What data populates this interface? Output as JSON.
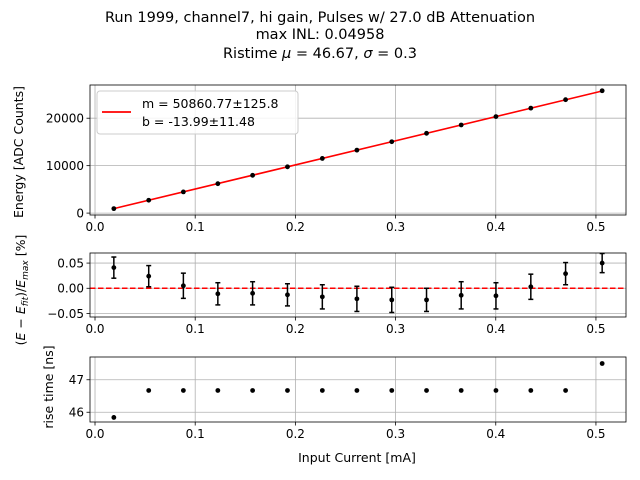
{
  "title_lines": [
    "Run 1999, channel7, hi gain, Pulses w/ 27.0 dB Attenuation",
    "max INL: 0.04958",
    "Ristime μ = 46.67, σ = 0.3"
  ],
  "chart_data": [
    {
      "type": "scatter",
      "name": "energy-vs-current",
      "ylabel": "Energy [ADC Counts]",
      "xlim": [
        -0.005,
        0.53
      ],
      "ylim": [
        -400,
        27000
      ],
      "xticks": [
        0.0,
        0.1,
        0.2,
        0.3,
        0.4,
        0.5
      ],
      "xtick_labels": [
        "0.0",
        "0.1",
        "0.2",
        "0.3",
        "0.4",
        "0.5"
      ],
      "yticks": [
        0,
        10000,
        20000
      ],
      "ytick_labels": [
        "0",
        "10000",
        "20000"
      ],
      "grid": true,
      "x": [
        0.0188,
        0.0536,
        0.0882,
        0.1226,
        0.1573,
        0.1921,
        0.2269,
        0.2614,
        0.2962,
        0.3309,
        0.3655,
        0.4002,
        0.435,
        0.4697,
        0.5062
      ],
      "y": [
        942,
        2713,
        4469,
        6197,
        7964,
        9755,
        11522,
        13273,
        15041,
        16813,
        18575,
        20341,
        22125,
        23904,
        25790
      ],
      "fit": {
        "m": 50860.77,
        "b": -13.99,
        "x_range": [
          0.0188,
          0.5062
        ]
      },
      "legend": [
        "m = 50860.77±125.8",
        "b = -13.99±11.48"
      ],
      "legend_position": "top-left",
      "fit_color": "#ff0000"
    },
    {
      "type": "scatter",
      "name": "inl-residuals",
      "ylabel": "(E − E_fit)/E_max [%]",
      "ylabel_parts": {
        "open": "(",
        "E": "E",
        "minus": " − ",
        "Efit_base": "E",
        "Efit_sub": "fit",
        "close": ")/",
        "Emax_base": "E",
        "Emax_sub": "max",
        "unit": " [%]"
      },
      "xlim": [
        -0.005,
        0.53
      ],
      "ylim": [
        -0.057,
        0.07
      ],
      "xticks": [
        0.0,
        0.1,
        0.2,
        0.3,
        0.4,
        0.5
      ],
      "xtick_labels": [
        "0.0",
        "0.1",
        "0.2",
        "0.3",
        "0.4",
        "0.5"
      ],
      "yticks": [
        -0.05,
        0.0,
        0.05
      ],
      "ytick_labels": [
        "−0.05",
        "0.00",
        "0.05"
      ],
      "grid": true,
      "x": [
        0.0188,
        0.0536,
        0.0882,
        0.1226,
        0.1573,
        0.1921,
        0.2269,
        0.2614,
        0.2962,
        0.3309,
        0.3655,
        0.4002,
        0.435,
        0.4697,
        0.5062
      ],
      "y": [
        0.041,
        0.024,
        0.005,
        -0.011,
        -0.01,
        -0.013,
        -0.017,
        -0.021,
        -0.023,
        -0.023,
        -0.014,
        -0.015,
        0.003,
        0.029,
        0.05
      ],
      "err": [
        0.021,
        0.021,
        0.025,
        0.022,
        0.023,
        0.022,
        0.024,
        0.025,
        0.025,
        0.023,
        0.027,
        0.026,
        0.025,
        0.022,
        0.019
      ],
      "zero_line_color": "#ff0000"
    },
    {
      "type": "scatter",
      "name": "rise-time",
      "ylabel": "rise time [ns]",
      "xlabel": "Input Current [mA]",
      "xlim": [
        -0.005,
        0.53
      ],
      "ylim": [
        45.7,
        47.7
      ],
      "xticks": [
        0.0,
        0.1,
        0.2,
        0.3,
        0.4,
        0.5
      ],
      "xtick_labels": [
        "0.0",
        "0.1",
        "0.2",
        "0.3",
        "0.4",
        "0.5"
      ],
      "yticks": [
        46,
        47
      ],
      "ytick_labels": [
        "46",
        "47"
      ],
      "grid": true,
      "x": [
        0.0188,
        0.0536,
        0.0882,
        0.1226,
        0.1573,
        0.1921,
        0.2269,
        0.2614,
        0.2962,
        0.3309,
        0.3655,
        0.4002,
        0.435,
        0.4697,
        0.5062
      ],
      "y": [
        45.84,
        46.67,
        46.67,
        46.67,
        46.67,
        46.67,
        46.67,
        46.67,
        46.67,
        46.67,
        46.67,
        46.67,
        46.67,
        46.67,
        47.5
      ]
    }
  ]
}
